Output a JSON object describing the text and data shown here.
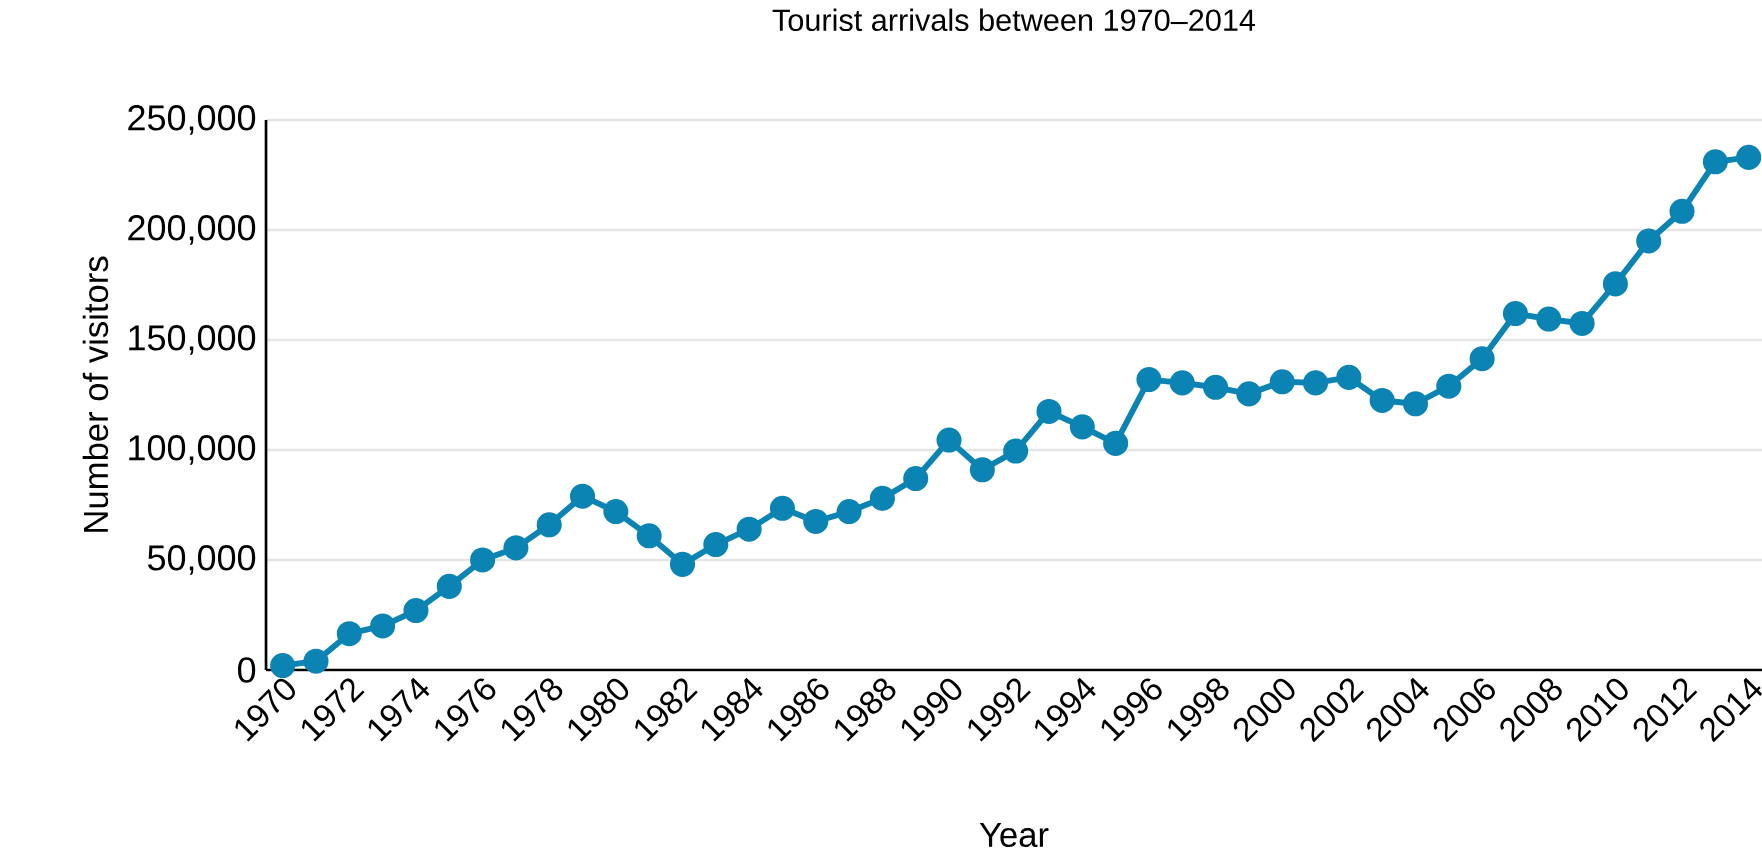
{
  "chart_data": {
    "type": "line",
    "title": "Tourist arrivals between 1970–2014",
    "xlabel": "Year",
    "ylabel": "Number of visitors",
    "x": [
      1970,
      1971,
      1972,
      1973,
      1974,
      1975,
      1976,
      1977,
      1978,
      1979,
      1980,
      1981,
      1982,
      1983,
      1984,
      1985,
      1986,
      1987,
      1988,
      1989,
      1990,
      1991,
      1992,
      1993,
      1994,
      1995,
      1996,
      1997,
      1998,
      1999,
      2000,
      2001,
      2002,
      2003,
      2004,
      2005,
      2006,
      2007,
      2008,
      2009,
      2010,
      2011,
      2012,
      2013,
      2014
    ],
    "series": [
      {
        "color": "#0b84b4",
        "values": [
          2000,
          4000,
          16500,
          20000,
          27000,
          38000,
          50000,
          55500,
          66000,
          79000,
          72000,
          61000,
          48000,
          57000,
          64000,
          73500,
          67500,
          72000,
          78000,
          87000,
          104500,
          91000,
          99500,
          117500,
          110500,
          103000,
          132000,
          130500,
          128500,
          125500,
          131000,
          130500,
          133000,
          122500,
          121000,
          129000,
          141500,
          162000,
          159500,
          157500,
          175500,
          195000,
          208500,
          231000,
          233000
        ]
      }
    ],
    "xlim": [
      1969.5,
      2014.4
    ],
    "xticks": [
      1970,
      1972,
      1974,
      1976,
      1978,
      1980,
      1982,
      1984,
      1986,
      1988,
      1990,
      1992,
      1994,
      1996,
      1998,
      2000,
      2002,
      2004,
      2006,
      2008,
      2010,
      2012,
      2014
    ],
    "ylim": [
      0,
      250000
    ],
    "yticks": [
      {
        "value": 0,
        "label": "0"
      },
      {
        "value": 50000,
        "label": "50,000"
      },
      {
        "value": 100000,
        "label": "100,000"
      },
      {
        "value": 150000,
        "label": "150,000"
      },
      {
        "value": 200000,
        "label": "200,000"
      },
      {
        "value": 250000,
        "label": "250,000"
      }
    ],
    "grid": "y",
    "marker": "circle",
    "line_style": "solid"
  }
}
